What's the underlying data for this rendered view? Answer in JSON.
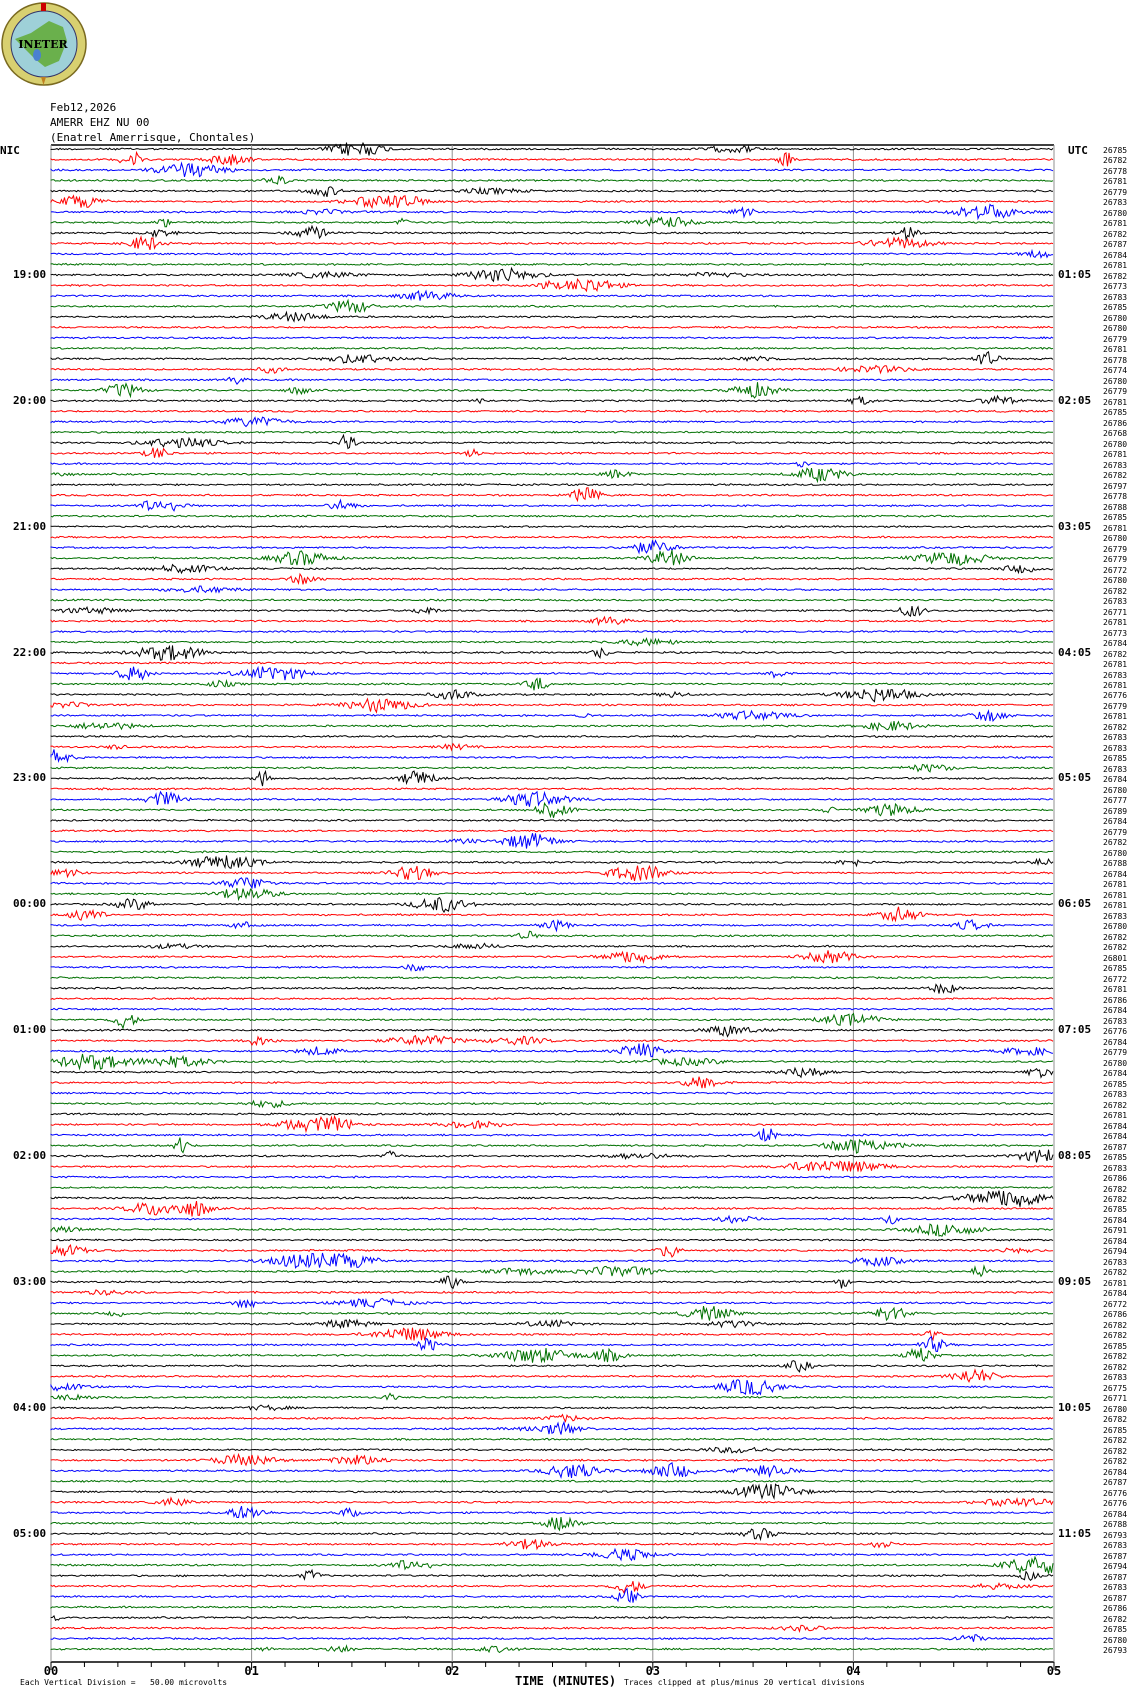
{
  "logo": {
    "text": "INETER"
  },
  "header": {
    "date": "Feb12,2026",
    "channel": "AMERR EHZ NU 00",
    "station": "(Enatrel Amerrisque, Chontales)"
  },
  "left_timezone": "NIC",
  "right_timezone": "UTC",
  "left_hour_labels": [
    "19:00",
    "20:00",
    "21:00",
    "22:00",
    "23:00",
    "00:00",
    "01:00",
    "02:00",
    "03:00",
    "04:00",
    "05:00"
  ],
  "right_hour_labels": [
    "01:05",
    "02:05",
    "03:05",
    "04:05",
    "05:05",
    "06:05",
    "07:05",
    "08:05",
    "09:05",
    "10:05",
    "11:05"
  ],
  "footer": {
    "scale": "Each Vertical Division =   50.00 microvolts",
    "xlabel": "TIME (MINUTES)",
    "clip_note": "Traces clipped at plus/minus 20 vertical divisions"
  },
  "colors": {
    "trace_cycle": [
      "#000000",
      "#ff0000",
      "#0000ff",
      "#007000"
    ],
    "grid": "#909090"
  },
  "chart_data": {
    "type": "line",
    "subtype": "helicorder",
    "xlabel": "TIME (MINUTES)",
    "x_tick_labels": [
      "00",
      "01",
      "02",
      "03",
      "04",
      "05"
    ],
    "xlim": [
      0,
      5
    ],
    "minutes_per_row": 5,
    "rows": 144,
    "grid": "vertical lines every minute",
    "row_counts": [
      26785,
      26782,
      26778,
      26781,
      26779,
      26783,
      26780,
      26781,
      26782,
      26787,
      26784,
      26781,
      26782,
      26773,
      26783,
      26785,
      26780,
      26780,
      26779,
      26781,
      26778,
      26774,
      26780,
      26779,
      26781,
      26785,
      26786,
      26768,
      26780,
      26781,
      26783,
      26782,
      26797,
      26778,
      26788,
      26785,
      26781,
      26780,
      26779,
      26779,
      26772,
      26780,
      26782,
      26783,
      26771,
      26781,
      26773,
      26784,
      26782,
      26781,
      26783,
      26781,
      26776,
      26779,
      26781,
      26782,
      26783,
      26783,
      26785,
      26783,
      26784,
      26780,
      26777,
      26789,
      26784,
      26779,
      26782,
      26780,
      26788,
      26784,
      26781,
      26781,
      26781,
      26783,
      26780,
      26782,
      26782,
      26801,
      26785,
      26772,
      26781,
      26786,
      26784,
      26783,
      26776,
      26784,
      26779,
      26780,
      26784,
      26785,
      26783,
      26782,
      26781,
      26784,
      26784,
      26787,
      26785,
      26783,
      26786,
      26782,
      26782,
      26785,
      26784,
      26791,
      26784,
      26794,
      26783,
      26782,
      26781,
      26784,
      26772,
      26786,
      26782,
      26782,
      26785,
      26782,
      26782,
      26783,
      26775,
      26771,
      26780,
      26782,
      26785,
      26782,
      26782,
      26782,
      26784,
      26787,
      26776,
      26776,
      26784,
      26788,
      26793,
      26783,
      26787,
      26794,
      26787,
      26783,
      26787,
      26786,
      26782,
      26785,
      26780,
      26793
    ]
  }
}
